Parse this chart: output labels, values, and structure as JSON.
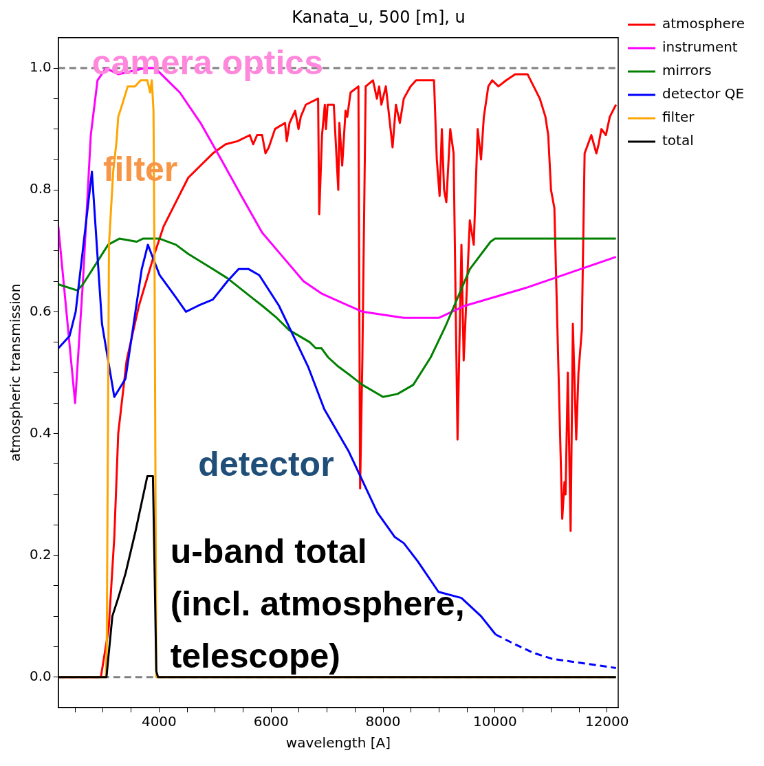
{
  "chart_data": {
    "type": "line",
    "title": "Kanata_u, 500 [m], u",
    "xlabel": "wavelength [A]",
    "ylabel": "atmospheric transmission",
    "xlim": [
      2200,
      12200
    ],
    "xticks": [
      {
        "value": 2500,
        "label": null
      },
      {
        "value": 3000,
        "label": null
      },
      {
        "value": 3500,
        "label": null
      },
      4000,
      {
        "value": 4500,
        "label": null
      },
      {
        "value": 5000,
        "label": null
      },
      {
        "value": 5500,
        "label": null
      },
      6000,
      {
        "value": 6500,
        "label": null
      },
      {
        "value": 7000,
        "label": null
      },
      {
        "value": 7500,
        "label": null
      },
      8000,
      {
        "value": 8500,
        "label": null
      },
      {
        "value": 9000,
        "label": null
      },
      {
        "value": 9500,
        "label": null
      },
      10000,
      {
        "value": 10500,
        "label": null
      },
      {
        "value": 11000,
        "label": null
      },
      {
        "value": 11500,
        "label": null
      },
      12000
    ],
    "ylim": [
      -0.05,
      1.05
    ],
    "yticks": [
      {
        "value": 0,
        "label": "0.0"
      },
      {
        "value": 0.05,
        "label": null
      },
      {
        "value": 0.1,
        "label": null
      },
      {
        "value": 0.15,
        "label": null
      },
      0.2,
      {
        "value": 0.25,
        "label": null
      },
      {
        "value": 0.3,
        "label": null
      },
      {
        "value": 0.35,
        "label": null
      },
      0.4,
      {
        "value": 0.45,
        "label": null
      },
      {
        "value": 0.5,
        "label": null
      },
      {
        "value": 0.55,
        "label": null
      },
      0.6,
      {
        "value": 0.65,
        "label": null
      },
      {
        "value": 0.7,
        "label": null
      },
      {
        "value": 0.75,
        "label": null
      },
      0.8,
      {
        "value": 0.85,
        "label": null
      },
      {
        "value": 0.9,
        "label": null
      },
      {
        "value": 0.95,
        "label": null
      },
      {
        "value": 1,
        "label": "1.0"
      }
    ],
    "grid": false,
    "legend": "top right",
    "ref_lines": [
      {
        "axis": "y",
        "value": 0,
        "color": "#808080",
        "line_style": "dashed"
      },
      {
        "axis": "y",
        "value": 1,
        "color": "#808080",
        "line_style": "dashed"
      }
    ],
    "annotations": [
      "camera optics",
      "filter",
      "detector",
      "u-band total\n(incl. atmosphere,\ntelescope)"
    ],
    "series": [
      {
        "name": "atmosphere",
        "color": "#ff0000",
        "x": [
          2200,
          2960,
          3100,
          3200,
          3270,
          3420,
          3640,
          3900,
          4080,
          4300,
          4520,
          4740,
          4960,
          5110,
          5190,
          5400,
          5620,
          5680,
          5750,
          5840,
          5900,
          5960,
          6070,
          6250,
          6280,
          6330,
          6430,
          6490,
          6530,
          6620,
          6840,
          6860,
          6910,
          6960,
          6980,
          7010,
          7070,
          7120,
          7200,
          7220,
          7270,
          7330,
          7360,
          7420,
          7560,
          7590,
          7630,
          7690,
          7820,
          7890,
          7930,
          7970,
          8050,
          8170,
          8230,
          8300,
          8370,
          8490,
          8590,
          8850,
          8910,
          8960,
          9010,
          9050,
          9090,
          9130,
          9200,
          9260,
          9330,
          9400,
          9440,
          9550,
          9620,
          9690,
          9750,
          9800,
          9880,
          9950,
          10060,
          10200,
          10360,
          10580,
          10690,
          10800,
          10900,
          10950,
          11000,
          11060,
          11200,
          11240,
          11260,
          11300,
          11350,
          11390,
          11450,
          11490,
          11550,
          11600,
          11720,
          11810,
          11850,
          11900,
          11980,
          12050,
          12160
        ],
        "values": [
          0,
          0,
          0.08,
          0.23,
          0.4,
          0.52,
          0.61,
          0.69,
          0.74,
          0.78,
          0.82,
          0.84,
          0.86,
          0.87,
          0.875,
          0.88,
          0.89,
          0.875,
          0.89,
          0.89,
          0.86,
          0.87,
          0.9,
          0.91,
          0.88,
          0.91,
          0.93,
          0.9,
          0.92,
          0.94,
          0.95,
          0.76,
          0.89,
          0.94,
          0.9,
          0.94,
          0.94,
          0.94,
          0.8,
          0.91,
          0.84,
          0.93,
          0.92,
          0.96,
          0.97,
          0.31,
          0.52,
          0.97,
          0.98,
          0.95,
          0.97,
          0.94,
          0.97,
          0.87,
          0.94,
          0.91,
          0.95,
          0.97,
          0.98,
          0.98,
          0.98,
          0.85,
          0.79,
          0.9,
          0.8,
          0.78,
          0.9,
          0.86,
          0.39,
          0.71,
          0.52,
          0.75,
          0.71,
          0.9,
          0.85,
          0.92,
          0.97,
          0.98,
          0.97,
          0.98,
          0.99,
          0.99,
          0.97,
          0.95,
          0.92,
          0.89,
          0.8,
          0.77,
          0.26,
          0.32,
          0.3,
          0.5,
          0.24,
          0.58,
          0.39,
          0.5,
          0.57,
          0.86,
          0.89,
          0.86,
          0.875,
          0.9,
          0.89,
          0.92,
          0.94
        ]
      },
      {
        "name": "instrument",
        "color": "#ff00ff",
        "x": [
          2200,
          2500,
          2640,
          2780,
          2900,
          3050,
          3270,
          3750,
          3930,
          4370,
          4740,
          5110,
          5470,
          5840,
          6210,
          6580,
          6900,
          7630,
          8370,
          9000,
          9470,
          10580,
          12160
        ],
        "values": [
          0.74,
          0.45,
          0.65,
          0.89,
          0.98,
          1,
          0.99,
          1,
          1,
          0.96,
          0.91,
          0.85,
          0.79,
          0.73,
          0.69,
          0.65,
          0.63,
          0.6,
          0.59,
          0.59,
          0.61,
          0.64,
          0.69
        ]
      },
      {
        "name": "mirrors",
        "color": "#008000",
        "x": [
          2200,
          2540,
          2640,
          3090,
          3290,
          3600,
          3710,
          4010,
          4300,
          4520,
          4960,
          5220,
          5700,
          5840,
          6100,
          6320,
          6690,
          6800,
          6900,
          7020,
          7200,
          7420,
          7630,
          8000,
          8260,
          8540,
          8850,
          9110,
          9550,
          9920,
          10000,
          12160
        ],
        "values": [
          0.645,
          0.635,
          0.645,
          0.71,
          0.72,
          0.715,
          0.72,
          0.72,
          0.71,
          0.695,
          0.67,
          0.655,
          0.62,
          0.61,
          0.59,
          0.57,
          0.55,
          0.54,
          0.54,
          0.525,
          0.51,
          0.495,
          0.48,
          0.46,
          0.465,
          0.48,
          0.525,
          0.575,
          0.67,
          0.715,
          0.72,
          0.72
        ]
      },
      {
        "name": "detector QE",
        "color": "#0000ff",
        "x": [
          2200,
          2400,
          2510,
          2800,
          2980,
          3200,
          3400,
          3690,
          3800,
          4010,
          4250,
          4480,
          4700,
          4960,
          5220,
          5420,
          5600,
          5790,
          6140,
          6660,
          6950,
          7390,
          7900,
          8210,
          8370,
          8620,
          8990,
          9400,
          9750,
          10010
        ],
        "values": [
          0.54,
          0.56,
          0.6,
          0.83,
          0.58,
          0.46,
          0.49,
          0.67,
          0.71,
          0.66,
          0.63,
          0.6,
          0.61,
          0.62,
          0.65,
          0.67,
          0.67,
          0.66,
          0.61,
          0.51,
          0.44,
          0.37,
          0.27,
          0.23,
          0.22,
          0.19,
          0.14,
          0.13,
          0.1,
          0.07
        ]
      },
      {
        "color": "#0000ff",
        "line_style": "dashed",
        "x": [
          10010,
          10330,
          10680,
          11020,
          12160
        ],
        "values": [
          0.07,
          0.055,
          0.04,
          0.03,
          0.015
        ]
      },
      {
        "name": "filter",
        "color": "#ffa500",
        "x": [
          2200,
          3050,
          3065,
          3105,
          3180,
          3240,
          3270,
          3340,
          3440,
          3570,
          3670,
          3790,
          3840,
          3870,
          3900,
          3920,
          3950,
          12160
        ],
        "values": [
          0,
          0,
          0.05,
          0.71,
          0.83,
          0.88,
          0.92,
          0.94,
          0.97,
          0.97,
          0.98,
          0.98,
          0.96,
          0.98,
          0.93,
          0.65,
          0,
          0
        ]
      },
      {
        "name": "total",
        "color": "#000000",
        "x": [
          2200,
          3060,
          3165,
          3270,
          3400,
          3580,
          3790,
          3840,
          3890,
          3915,
          3950,
          3980,
          12160
        ],
        "values": [
          0,
          0,
          0.1,
          0.13,
          0.17,
          0.24,
          0.33,
          0.33,
          0.33,
          0.2,
          0.01,
          0,
          0
        ]
      }
    ]
  }
}
